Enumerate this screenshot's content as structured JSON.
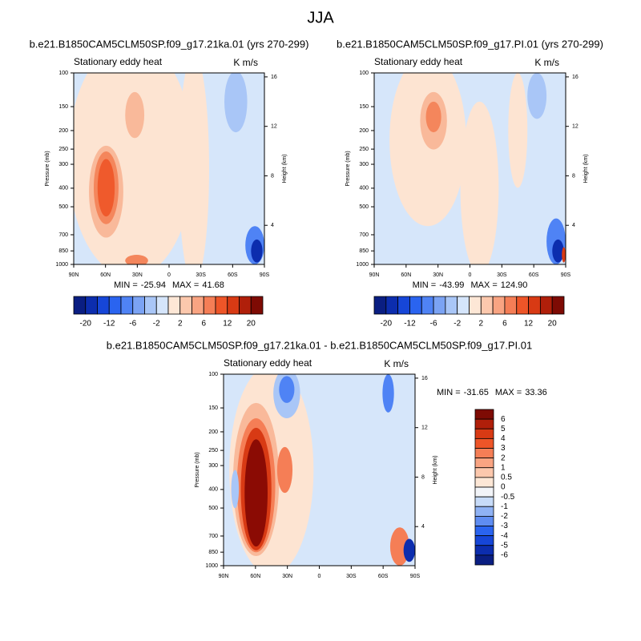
{
  "title": "JJA",
  "chart_data": [
    {
      "type": "contour",
      "title": "b.e21.B1850CAM5CLM50SP.f09_g17.21ka.01 (yrs 270-299)",
      "left_label": "Stationary eddy heat",
      "right_label": "K m/s",
      "ylabel": "Pressure (mb)",
      "y2label": "Height (km)",
      "log_y": true,
      "xlim": [
        90,
        -90
      ],
      "xticks": [
        {
          "value": 90,
          "label": "90N"
        },
        {
          "value": 60,
          "label": "60N"
        },
        {
          "value": 30,
          "label": "30N"
        },
        0,
        {
          "value": -30,
          "label": "30S"
        },
        {
          "value": -60,
          "label": "60S"
        },
        {
          "value": -90,
          "label": "90S"
        }
      ],
      "ylim": [
        1000,
        100
      ],
      "yticks": [
        100,
        150,
        200,
        250,
        300,
        400,
        500,
        700,
        850,
        1000
      ],
      "y2lim": [
        0.84,
        16.32
      ],
      "y2ticks": [
        4,
        8,
        12,
        16
      ],
      "stats": [
        {
          "label": "MIN =",
          "value": -25.94
        },
        {
          "label": "MAX =",
          "value": 41.68
        }
      ],
      "colorbar_orientation": "horizontal",
      "colorbar_colors": [
        "#0a1e82",
        "#0c2dae",
        "#1646d8",
        "#2a64f0",
        "#4f83f5",
        "#7ba3f4",
        "#a9c6f7",
        "#d5e5fb",
        "#fde7d6",
        "#fcc8ad",
        "#f9a482",
        "#f57e56",
        "#ee5528",
        "#d83a14",
        "#b01f0a",
        "#7e0b04"
      ],
      "colorbar_labels": [
        -20,
        -12,
        -6,
        -2,
        2,
        6,
        12,
        20
      ]
    },
    {
      "type": "contour",
      "title": "b.e21.B1850CAM5CLM50SP.f09_g17.PI.01 (yrs 270-299)",
      "left_label": "Stationary eddy heat",
      "right_label": "K m/s",
      "ylabel": "Pressure (mb)",
      "y2label": "Height (km)",
      "log_y": true,
      "xlim": [
        90,
        -90
      ],
      "xticks": [
        {
          "value": 90,
          "label": "90N"
        },
        {
          "value": 60,
          "label": "60N"
        },
        {
          "value": 30,
          "label": "30N"
        },
        0,
        {
          "value": -30,
          "label": "30S"
        },
        {
          "value": -60,
          "label": "60S"
        },
        {
          "value": -90,
          "label": "90S"
        }
      ],
      "ylim": [
        1000,
        100
      ],
      "yticks": [
        100,
        150,
        200,
        250,
        300,
        400,
        500,
        700,
        850,
        1000
      ],
      "y2lim": [
        0.84,
        16.32
      ],
      "y2ticks": [
        4,
        8,
        12,
        16
      ],
      "stats": [
        {
          "label": "MIN =",
          "value": -43.99
        },
        {
          "label": "MAX =",
          "value": 124.9,
          "value_label": "124.90"
        }
      ],
      "colorbar_orientation": "horizontal",
      "colorbar_colors": [
        "#0a1e82",
        "#0c2dae",
        "#1646d8",
        "#2a64f0",
        "#4f83f5",
        "#7ba3f4",
        "#a9c6f7",
        "#d5e5fb",
        "#fde7d6",
        "#fcc8ad",
        "#f9a482",
        "#f57e56",
        "#ee5528",
        "#d83a14",
        "#b01f0a",
        "#7e0b04"
      ],
      "colorbar_labels": [
        -20,
        -12,
        -6,
        -2,
        2,
        6,
        12,
        20
      ]
    },
    {
      "type": "contour",
      "title": "b.e21.B1850CAM5CLM50SP.f09_g17.21ka.01 - b.e21.B1850CAM5CLM50SP.f09_g17.PI.01",
      "left_label": "Stationary eddy heat",
      "right_label": "K m/s",
      "ylabel": "Pressure (mb)",
      "y2label": "Height (km)",
      "log_y": true,
      "xlim": [
        90,
        -90
      ],
      "xticks": [
        {
          "value": 90,
          "label": "90N"
        },
        {
          "value": 60,
          "label": "60N"
        },
        {
          "value": 30,
          "label": "30N"
        },
        0,
        {
          "value": -30,
          "label": "30S"
        },
        {
          "value": -60,
          "label": "60S"
        },
        {
          "value": -90,
          "label": "90S"
        }
      ],
      "ylim": [
        1000,
        100
      ],
      "yticks": [
        100,
        150,
        200,
        250,
        300,
        400,
        500,
        700,
        850,
        1000
      ],
      "y2lim": [
        0.84,
        16.32
      ],
      "y2ticks": [
        4,
        8,
        12,
        16
      ],
      "stats": [
        {
          "label": "MIN =",
          "value": -31.65
        },
        {
          "label": "MAX =",
          "value": 33.36
        }
      ],
      "colorbar_orientation": "vertical",
      "colorbar_colors": [
        "#7e0b04",
        "#b01f0a",
        "#d83a14",
        "#ee5528",
        "#f57e56",
        "#f9a482",
        "#fcc8ad",
        "#fde7d6",
        "#f2f4f8",
        "#c7dbf8",
        "#8fb2f4",
        "#5f8df2",
        "#2a64f0",
        "#1646d8",
        "#0c2dae",
        "#0a1e82"
      ],
      "colorbar_labels": [
        6,
        5,
        4,
        3,
        2,
        1,
        0.5,
        0,
        -0.5,
        -1,
        -2,
        -3,
        -4,
        -5,
        -6
      ]
    }
  ]
}
